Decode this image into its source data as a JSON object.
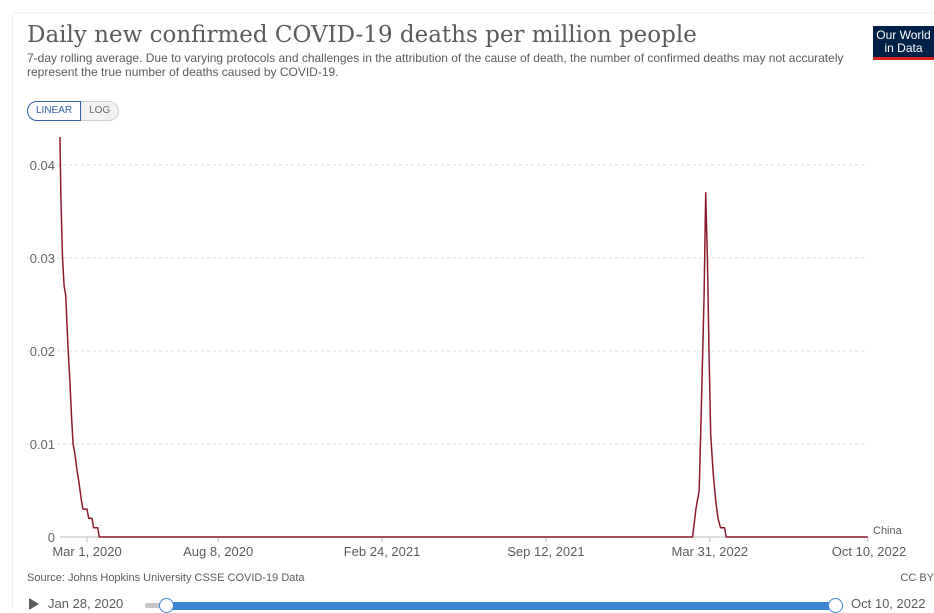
{
  "header": {
    "title": "Daily new confirmed COVID-19 deaths per million people",
    "subtitle": "7-day rolling average. Due to varying protocols and challenges in the attribution of the cause of death, the number of confirmed deaths may not accurately represent the true number of deaths caused by COVID-19.",
    "logo_line1": "Our World",
    "logo_line2": "in Data"
  },
  "controls": {
    "linear_label": "LINEAR",
    "log_label": "LOG",
    "active_scale": "linear"
  },
  "chart_data": {
    "type": "line",
    "title": "Daily new confirmed COVID-19 deaths per million people",
    "xlabel": "",
    "ylabel": "",
    "xlim": [
      "2020-01-28",
      "2022-10-10"
    ],
    "ylim": [
      0,
      0.043
    ],
    "y_ticks": [
      0,
      0.01,
      0.02,
      0.03,
      0.04
    ],
    "y_tick_labels": [
      "0",
      "0.01",
      "0.02",
      "0.03",
      "0.04"
    ],
    "x_ticks": [
      "2020-03-01",
      "2020-08-08",
      "2021-02-24",
      "2021-09-12",
      "2022-03-31",
      "2022-10-10"
    ],
    "x_tick_labels": [
      "Mar 1, 2020",
      "Aug 8, 2020",
      "Feb 24, 2021",
      "Sep 12, 2021",
      "Mar 31, 2022",
      "Oct 10, 2022"
    ],
    "grid": true,
    "series": [
      {
        "name": "China",
        "color": "#8b1a2b",
        "points": [
          [
            "2020-01-28",
            0.043
          ],
          [
            "2020-01-29",
            0.037
          ],
          [
            "2020-01-31",
            0.03
          ],
          [
            "2020-02-02",
            0.027
          ],
          [
            "2020-02-04",
            0.026
          ],
          [
            "2020-02-07",
            0.02
          ],
          [
            "2020-02-09",
            0.017
          ],
          [
            "2020-02-11",
            0.013
          ],
          [
            "2020-02-13",
            0.01
          ],
          [
            "2020-02-15",
            0.009
          ],
          [
            "2020-02-18",
            0.007
          ],
          [
            "2020-02-20",
            0.006
          ],
          [
            "2020-02-23",
            0.004
          ],
          [
            "2020-02-25",
            0.003
          ],
          [
            "2020-03-01",
            0.003
          ],
          [
            "2020-03-03",
            0.002
          ],
          [
            "2020-03-07",
            0.002
          ],
          [
            "2020-03-09",
            0.001
          ],
          [
            "2020-03-14",
            0.001
          ],
          [
            "2020-03-16",
            0.0
          ],
          [
            "2022-03-10",
            0.0
          ],
          [
            "2022-03-14",
            0.003
          ],
          [
            "2022-03-18",
            0.005
          ],
          [
            "2022-03-21",
            0.015
          ],
          [
            "2022-03-24",
            0.026
          ],
          [
            "2022-03-26",
            0.037
          ],
          [
            "2022-03-28",
            0.03
          ],
          [
            "2022-03-30",
            0.02
          ],
          [
            "2022-04-01",
            0.011
          ],
          [
            "2022-04-04",
            0.007
          ],
          [
            "2022-04-07",
            0.004
          ],
          [
            "2022-04-10",
            0.002
          ],
          [
            "2022-04-13",
            0.001
          ],
          [
            "2022-04-18",
            0.001
          ],
          [
            "2022-04-20",
            0.0
          ],
          [
            "2022-10-10",
            0.0
          ]
        ]
      }
    ]
  },
  "footer": {
    "source": "Source: Johns Hopkins University CSSE COVID-19 Data",
    "license": "CC BY"
  },
  "timeline": {
    "start_label": "Jan 28, 2020",
    "end_label": "Oct 10, 2022"
  }
}
